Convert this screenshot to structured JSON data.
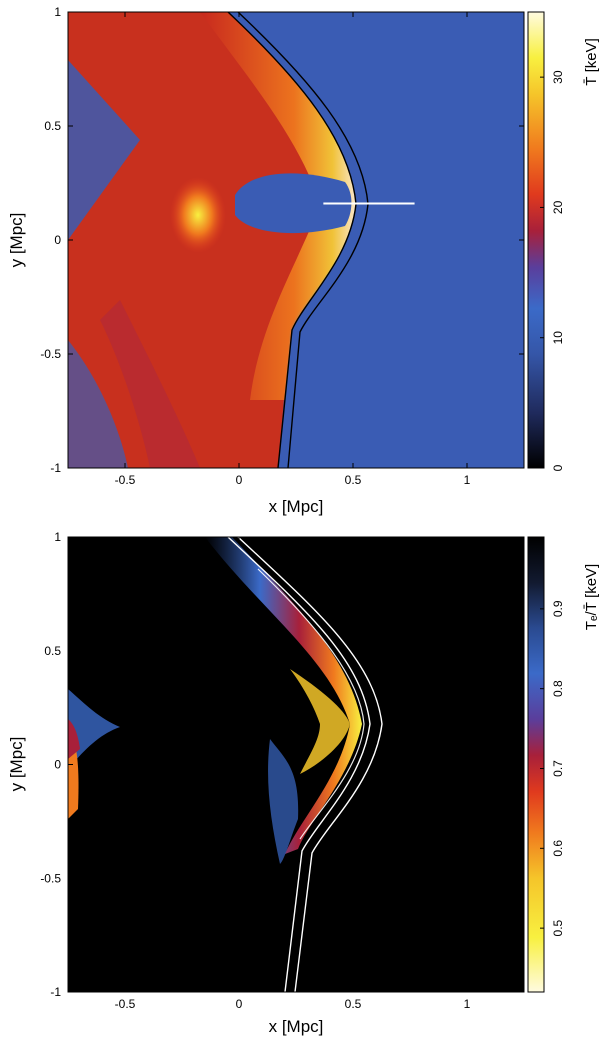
{
  "chart_data": [
    {
      "type": "heatmap",
      "title": "",
      "xlabel": "x [Mpc]",
      "ylabel": "y [Mpc]",
      "xlim": [
        -0.75,
        1.25
      ],
      "ylim": [
        -1,
        1
      ],
      "xticks": [
        "-0.5",
        "0",
        "0.5",
        "1"
      ],
      "xtick_values": [
        -0.5,
        0,
        0.5,
        1
      ],
      "yticks": [
        "-1",
        "-0.5",
        "0",
        "0.5",
        "1"
      ],
      "ytick_values": [
        -1,
        -0.5,
        0,
        0.5,
        1
      ],
      "colorbar": {
        "label": "T̄ [keV]",
        "ticks": [
          "0",
          "10",
          "20",
          "30"
        ],
        "tick_values": [
          0,
          10,
          20,
          30
        ],
        "range": [
          0,
          35
        ],
        "colormap": [
          "#000000",
          "#1f2a5c",
          "#3556a8",
          "#3b6ac8",
          "#5a3e9c",
          "#a8203a",
          "#e03a1e",
          "#f07a1e",
          "#f5c52a",
          "#f8f040",
          "#fffbe0"
        ]
      },
      "overlays": [
        {
          "type": "contour",
          "color": "#000000",
          "description_points_x": [
            0.0,
            0.22,
            0.45,
            0.58,
            0.45,
            0.26,
            0.22,
            0.18
          ],
          "description_points_y": [
            1.0,
            0.75,
            0.5,
            0.16,
            -0.15,
            -0.4,
            -0.6,
            -1.0
          ]
        },
        {
          "type": "line",
          "color": "#ffffff",
          "x": [
            0.37,
            0.77
          ],
          "y": [
            0.16,
            0.16
          ]
        }
      ]
    },
    {
      "type": "heatmap",
      "title": "",
      "xlabel": "x [Mpc]",
      "ylabel": "y [Mpc]",
      "xlim": [
        -0.75,
        1.25
      ],
      "ylim": [
        -1,
        1
      ],
      "xticks": [
        "-0.5",
        "0",
        "0.5",
        "1"
      ],
      "xtick_values": [
        -0.5,
        0,
        0.5,
        1
      ],
      "yticks": [
        "-1",
        "-0.5",
        "0",
        "0.5",
        "1"
      ],
      "ytick_values": [
        -1,
        -0.5,
        0,
        0.5,
        1
      ],
      "colorbar": {
        "label": "Tₑ/T̄ [keV]",
        "ticks": [
          "0.5",
          "0.6",
          "0.7",
          "0.8",
          "0.9"
        ],
        "tick_values": [
          0.5,
          0.6,
          0.7,
          0.8,
          0.9
        ],
        "range": [
          0.42,
          0.99
        ],
        "colormap": [
          "#fffbe0",
          "#f8f040",
          "#f5c52a",
          "#f07a1e",
          "#e03a1e",
          "#a8203a",
          "#5a3e9c",
          "#3b6ac8",
          "#2a4a90",
          "#121a30",
          "#000000"
        ]
      },
      "overlays": [
        {
          "type": "contour",
          "color": "#ffffff",
          "description_points_x": [
            -0.05,
            0.22,
            0.45,
            0.58,
            0.45,
            0.26,
            0.22,
            0.18
          ],
          "description_points_y": [
            1.0,
            0.75,
            0.5,
            0.16,
            -0.15,
            -0.4,
            -0.6,
            -1.0
          ]
        }
      ]
    }
  ]
}
